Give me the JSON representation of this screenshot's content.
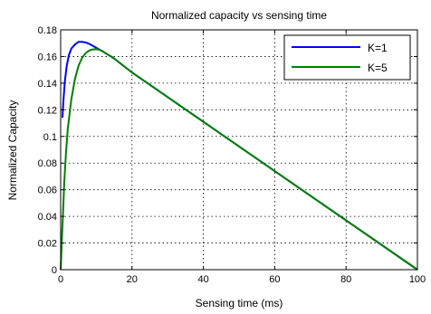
{
  "chart_data": {
    "type": "line",
    "title": "Normalized capacity vs sensing time",
    "xlabel": "Sensing time (ms)",
    "ylabel": "Normalized Capacity",
    "xlim": [
      0,
      100
    ],
    "ylim": [
      0,
      0.18
    ],
    "xticks": [
      0,
      20,
      40,
      60,
      80,
      100
    ],
    "yticks": [
      0,
      0.02,
      0.04,
      0.06,
      0.08,
      0.1,
      0.12,
      0.14,
      0.16,
      0.18
    ],
    "grid": true,
    "legend_position": "top-right",
    "series": [
      {
        "name": "K=1",
        "color": "#0000ff",
        "points": [
          [
            0.5,
            0.114
          ],
          [
            0.8,
            0.128
          ],
          [
            1.2,
            0.142
          ],
          [
            1.7,
            0.153
          ],
          [
            2.3,
            0.161
          ],
          [
            3,
            0.166
          ],
          [
            4,
            0.169
          ],
          [
            5,
            0.171
          ],
          [
            6,
            0.171
          ],
          [
            7,
            0.1705
          ],
          [
            8,
            0.1695
          ],
          [
            9,
            0.168
          ],
          [
            10,
            0.1665
          ],
          [
            12,
            0.1635
          ],
          [
            15,
            0.1585
          ],
          [
            20,
            0.148
          ],
          [
            30,
            0.1295
          ],
          [
            40,
            0.111
          ],
          [
            50,
            0.0925
          ],
          [
            60,
            0.074
          ],
          [
            70,
            0.0555
          ],
          [
            80,
            0.037
          ],
          [
            90,
            0.0185
          ],
          [
            100,
            0
          ]
        ]
      },
      {
        "name": "K=5",
        "color": "#008000",
        "points": [
          [
            0,
            0
          ],
          [
            0.3,
            0.02
          ],
          [
            0.7,
            0.045
          ],
          [
            1,
            0.065
          ],
          [
            1.5,
            0.088
          ],
          [
            2,
            0.106
          ],
          [
            3,
            0.128
          ],
          [
            4,
            0.143
          ],
          [
            5,
            0.153
          ],
          [
            6,
            0.159
          ],
          [
            7,
            0.1625
          ],
          [
            8,
            0.1645
          ],
          [
            9,
            0.1653
          ],
          [
            10,
            0.1655
          ],
          [
            11,
            0.165
          ],
          [
            12,
            0.1635
          ],
          [
            15,
            0.1585
          ],
          [
            20,
            0.148
          ],
          [
            30,
            0.1295
          ],
          [
            40,
            0.111
          ],
          [
            50,
            0.0925
          ],
          [
            60,
            0.074
          ],
          [
            70,
            0.0555
          ],
          [
            80,
            0.037
          ],
          [
            90,
            0.0185
          ],
          [
            100,
            0
          ]
        ]
      }
    ]
  }
}
